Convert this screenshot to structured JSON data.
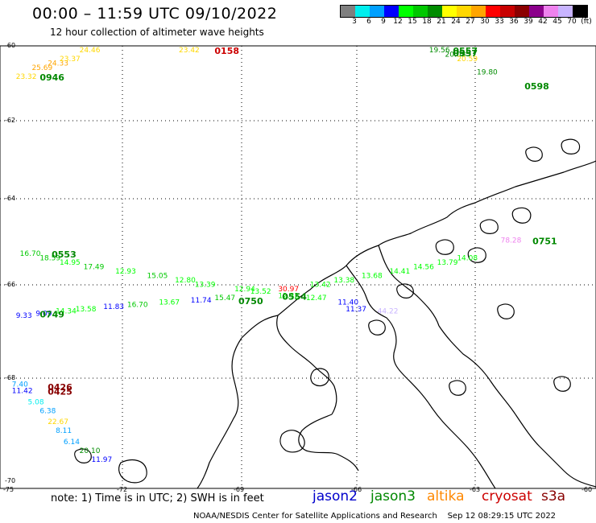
{
  "title": "00:00 – 11:59 UTC 09/10/2022",
  "subtitle": "12 hour collection of altimeter wave heights",
  "colorbar": {
    "colors": [
      "#7f7f7f",
      "#00eeee",
      "#00a0ff",
      "#0000ff",
      "#00ff00",
      "#00c800",
      "#008c00",
      "#ffff00",
      "#ffd700",
      "#ffa500",
      "#ff0000",
      "#c80000",
      "#8b0000",
      "#8b008b",
      "#ee82ee",
      "#c8b4ff",
      "#000000"
    ],
    "labels": [
      "3",
      "6",
      "9",
      "12",
      "15",
      "18",
      "21",
      "24",
      "27",
      "30",
      "33",
      "36",
      "39",
      "42",
      "45",
      "70",
      "(ft)"
    ]
  },
  "lat_labels": [
    "-60",
    "-62",
    "-64",
    "-66",
    "-68",
    "-70"
  ],
  "lon_labels": [
    "-75",
    "-72",
    "-69",
    "-66",
    "-63",
    "-60"
  ],
  "note": "note: 1) Time is in UTC; 2) SWH is in feet",
  "satellites": [
    {
      "name": "jason2",
      "color": "#0000cc"
    },
    {
      "name": "jason3",
      "color": "#008800"
    },
    {
      "name": "altika",
      "color": "#ff8800"
    },
    {
      "name": "cryosat",
      "color": "#cc0000"
    },
    {
      "name": "s3a",
      "color": "#880000"
    }
  ],
  "footer": "NOAA/NESDIS Center for Satellite Applications and Research    Sep 12 08:29:15 UTC 2022",
  "chart_data": {
    "type": "scatter",
    "title": "00:00 – 11:59 UTC 09/10/2022",
    "subtitle": "12 hour collection of altimeter wave heights",
    "x_range": [
      -75,
      -60
    ],
    "y_range": [
      -70,
      -60
    ],
    "wave_heights": [
      {
        "lon": -74.6,
        "lat": -60.6,
        "value": "23.32",
        "color": "#ffd700"
      },
      {
        "lon": -74.2,
        "lat": -60.4,
        "value": "25.69",
        "color": "#ffa500"
      },
      {
        "lon": -73.8,
        "lat": -60.3,
        "value": "24.33",
        "color": "#ffa500"
      },
      {
        "lon": -73.5,
        "lat": -60.2,
        "value": "23.37",
        "color": "#ffd700"
      },
      {
        "lon": -73.0,
        "lat": -60.0,
        "value": "24.46",
        "color": "#ffd700"
      },
      {
        "lon": -70.5,
        "lat": -60.0,
        "value": "23.42",
        "color": "#ffd700"
      },
      {
        "lon": -64.2,
        "lat": -60.0,
        "value": "19.56",
        "color": "#008c00"
      },
      {
        "lon": -63.8,
        "lat": -60.1,
        "value": "20.08",
        "color": "#008c00"
      },
      {
        "lon": -63.5,
        "lat": -60.2,
        "value": "20.59",
        "color": "#ffd700"
      },
      {
        "lon": -63.0,
        "lat": -60.5,
        "value": "19.80",
        "color": "#008c00"
      },
      {
        "lon": -74.5,
        "lat": -64.6,
        "value": "16.70",
        "color": "#00c800"
      },
      {
        "lon": -74.0,
        "lat": -64.7,
        "value": "18.59",
        "color": "#00c800"
      },
      {
        "lon": -73.5,
        "lat": -64.8,
        "value": "14.95",
        "color": "#00ff00"
      },
      {
        "lon": -72.9,
        "lat": -64.9,
        "value": "17.49",
        "color": "#00c800"
      },
      {
        "lon": -72.1,
        "lat": -65.0,
        "value": "12.93",
        "color": "#00ff00"
      },
      {
        "lon": -71.3,
        "lat": -65.1,
        "value": "15.05",
        "color": "#00c800"
      },
      {
        "lon": -70.6,
        "lat": -65.2,
        "value": "12.80",
        "color": "#00ff00"
      },
      {
        "lon": -70.1,
        "lat": -65.3,
        "value": "13.39",
        "color": "#00ff00"
      },
      {
        "lon": -69.1,
        "lat": -65.4,
        "value": "12.94",
        "color": "#00ff00"
      },
      {
        "lon": -68.7,
        "lat": -65.45,
        "value": "13.52",
        "color": "#00ff00"
      },
      {
        "lon": -68.0,
        "lat": -65.4,
        "value": "30.97",
        "color": "#ff0000"
      },
      {
        "lon": -67.2,
        "lat": -65.3,
        "value": "13.42",
        "color": "#00ff00"
      },
      {
        "lon": -66.6,
        "lat": -65.2,
        "value": "13.38",
        "color": "#00ff00"
      },
      {
        "lon": -65.9,
        "lat": -65.1,
        "value": "13.68",
        "color": "#00ff00"
      },
      {
        "lon": -65.2,
        "lat": -65.0,
        "value": "14.41",
        "color": "#00ff00"
      },
      {
        "lon": -64.6,
        "lat": -64.9,
        "value": "14.56",
        "color": "#00ff00"
      },
      {
        "lon": -64.0,
        "lat": -64.8,
        "value": "13.79",
        "color": "#00ff00"
      },
      {
        "lon": -63.5,
        "lat": -64.7,
        "value": "14.08",
        "color": "#00ff00"
      },
      {
        "lon": -74.6,
        "lat": -66.0,
        "value": "9.33",
        "color": "#0000ff"
      },
      {
        "lon": -74.1,
        "lat": -65.95,
        "value": "9.09",
        "color": "#0000ff"
      },
      {
        "lon": -73.6,
        "lat": -65.9,
        "value": "14.34",
        "color": "#00ff00"
      },
      {
        "lon": -73.1,
        "lat": -65.85,
        "value": "13.58",
        "color": "#00ff00"
      },
      {
        "lon": -72.4,
        "lat": -65.8,
        "value": "11.83",
        "color": "#0000ff"
      },
      {
        "lon": -71.8,
        "lat": -65.75,
        "value": "16.70",
        "color": "#00c800"
      },
      {
        "lon": -71.0,
        "lat": -65.7,
        "value": "13.67",
        "color": "#00ff00"
      },
      {
        "lon": -70.2,
        "lat": -65.65,
        "value": "11.74",
        "color": "#0000ff"
      },
      {
        "lon": -69.6,
        "lat": -65.6,
        "value": "15.47",
        "color": "#00c800"
      },
      {
        "lon": -68.0,
        "lat": -65.55,
        "value": "12.32",
        "color": "#00ff00"
      },
      {
        "lon": -67.3,
        "lat": -65.6,
        "value": "12.47",
        "color": "#00ff00"
      },
      {
        "lon": -66.5,
        "lat": -65.7,
        "value": "11.40",
        "color": "#0000ff"
      },
      {
        "lon": -66.3,
        "lat": -65.85,
        "value": "11.37",
        "color": "#0000ff"
      },
      {
        "lon": -65.5,
        "lat": -65.9,
        "value": "44.22",
        "color": "#c8b4ff"
      },
      {
        "lon": -62.4,
        "lat": -64.3,
        "value": "78.28",
        "color": "#ee82ee"
      },
      {
        "lon": -74.7,
        "lat": -67.55,
        "value": "7.40",
        "color": "#00a0ff"
      },
      {
        "lon": -74.7,
        "lat": -67.7,
        "value": "11.42",
        "color": "#0000ff"
      },
      {
        "lon": -74.3,
        "lat": -67.95,
        "value": "5.08",
        "color": "#00eeee"
      },
      {
        "lon": -74.0,
        "lat": -68.15,
        "value": "6.38",
        "color": "#00a0ff"
      },
      {
        "lon": -73.8,
        "lat": -68.4,
        "value": "22.67",
        "color": "#ffd700"
      },
      {
        "lon": -73.6,
        "lat": -68.6,
        "value": "8.11",
        "color": "#00a0ff"
      },
      {
        "lon": -73.4,
        "lat": -68.85,
        "value": "6.14",
        "color": "#00a0ff"
      },
      {
        "lon": -73.0,
        "lat": -69.05,
        "value": "20.10",
        "color": "#008c00"
      },
      {
        "lon": -72.7,
        "lat": -69.25,
        "value": "11.97",
        "color": "#0000ff"
      }
    ],
    "pass_times": [
      {
        "lon": -74.0,
        "lat": -60.6,
        "value": "0946",
        "color": "#008800"
      },
      {
        "lon": -69.6,
        "lat": -60.0,
        "value": "0158",
        "color": "#cc0000"
      },
      {
        "lon": -63.6,
        "lat": -60.0,
        "value": "0557",
        "color": "#008800"
      },
      {
        "lon": -63.6,
        "lat": -60.05,
        "value": "0557",
        "color": "#008800"
      },
      {
        "lon": -61.8,
        "lat": -60.8,
        "value": "0598",
        "color": "#008800"
      },
      {
        "lon": -73.7,
        "lat": -64.6,
        "value": "0553",
        "color": "#008800"
      },
      {
        "lon": -74.0,
        "lat": -65.95,
        "value": "0749",
        "color": "#008800"
      },
      {
        "lon": -67.9,
        "lat": -65.55,
        "value": "0554",
        "color": "#008800"
      },
      {
        "lon": -69.0,
        "lat": -65.65,
        "value": "0750",
        "color": "#008800"
      },
      {
        "lon": -61.6,
        "lat": -64.3,
        "value": "0751",
        "color": "#008800"
      },
      {
        "lon": -73.8,
        "lat": -67.6,
        "value": "0426",
        "color": "#880000"
      },
      {
        "lon": -73.8,
        "lat": -67.7,
        "value": "0425",
        "color": "#880000"
      }
    ]
  }
}
